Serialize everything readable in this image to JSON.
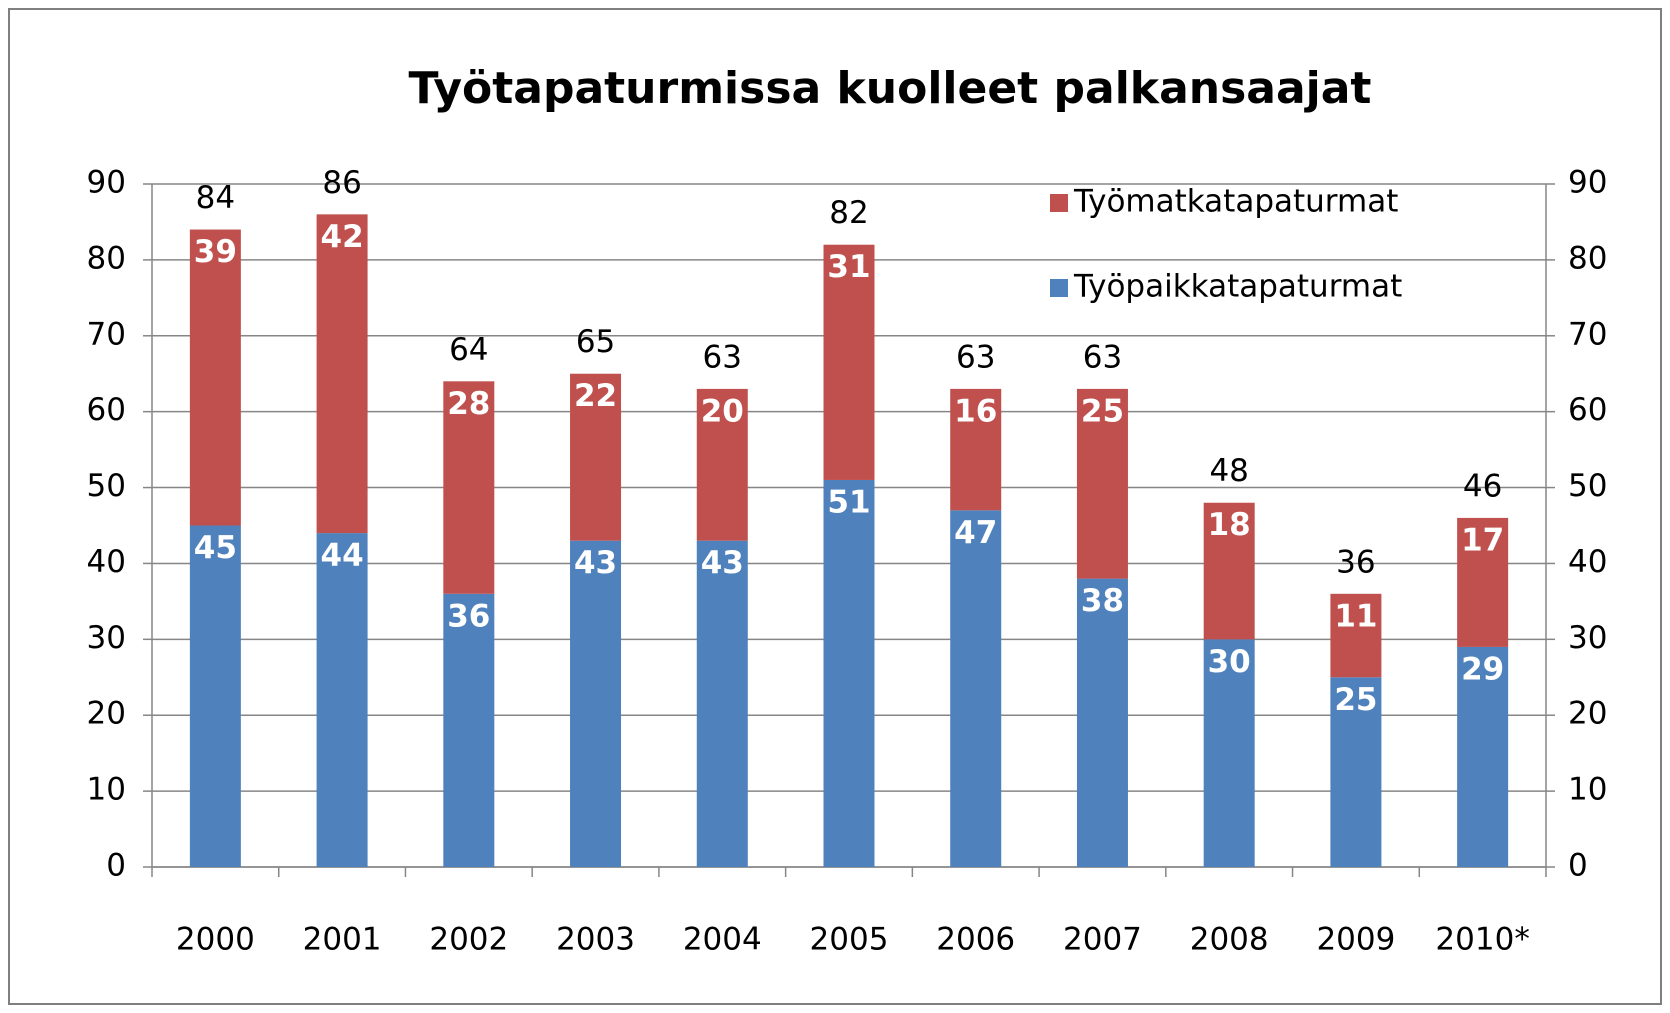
{
  "chart_data": {
    "type": "stacked_bar",
    "title": "Työtapaturmissa kuolleet palkansaajat",
    "categories": [
      "2000",
      "2001",
      "2002",
      "2003",
      "2004",
      "2005",
      "2006",
      "2007",
      "2008",
      "2009",
      "2010*"
    ],
    "series": [
      {
        "name": "Työpaikkatapaturmat",
        "color": "#4f81bd",
        "values": [
          45,
          44,
          36,
          43,
          43,
          51,
          47,
          38,
          30,
          25,
          29
        ]
      },
      {
        "name": "Työmatkatapaturmat",
        "color": "#c0504d",
        "values": [
          39,
          42,
          28,
          22,
          20,
          31,
          16,
          25,
          18,
          11,
          17
        ]
      }
    ],
    "totals": [
      84,
      86,
      64,
      65,
      63,
      82,
      63,
      63,
      48,
      36,
      46
    ],
    "ylim": [
      0,
      90
    ],
    "yticks": [
      0,
      10,
      20,
      30,
      40,
      50,
      60,
      70,
      80,
      90
    ],
    "y2lim": [
      0,
      90
    ],
    "y2ticks": [
      0,
      10,
      20,
      30,
      40,
      50,
      60,
      70,
      80,
      90
    ],
    "grid": true,
    "legend": "top-right"
  }
}
